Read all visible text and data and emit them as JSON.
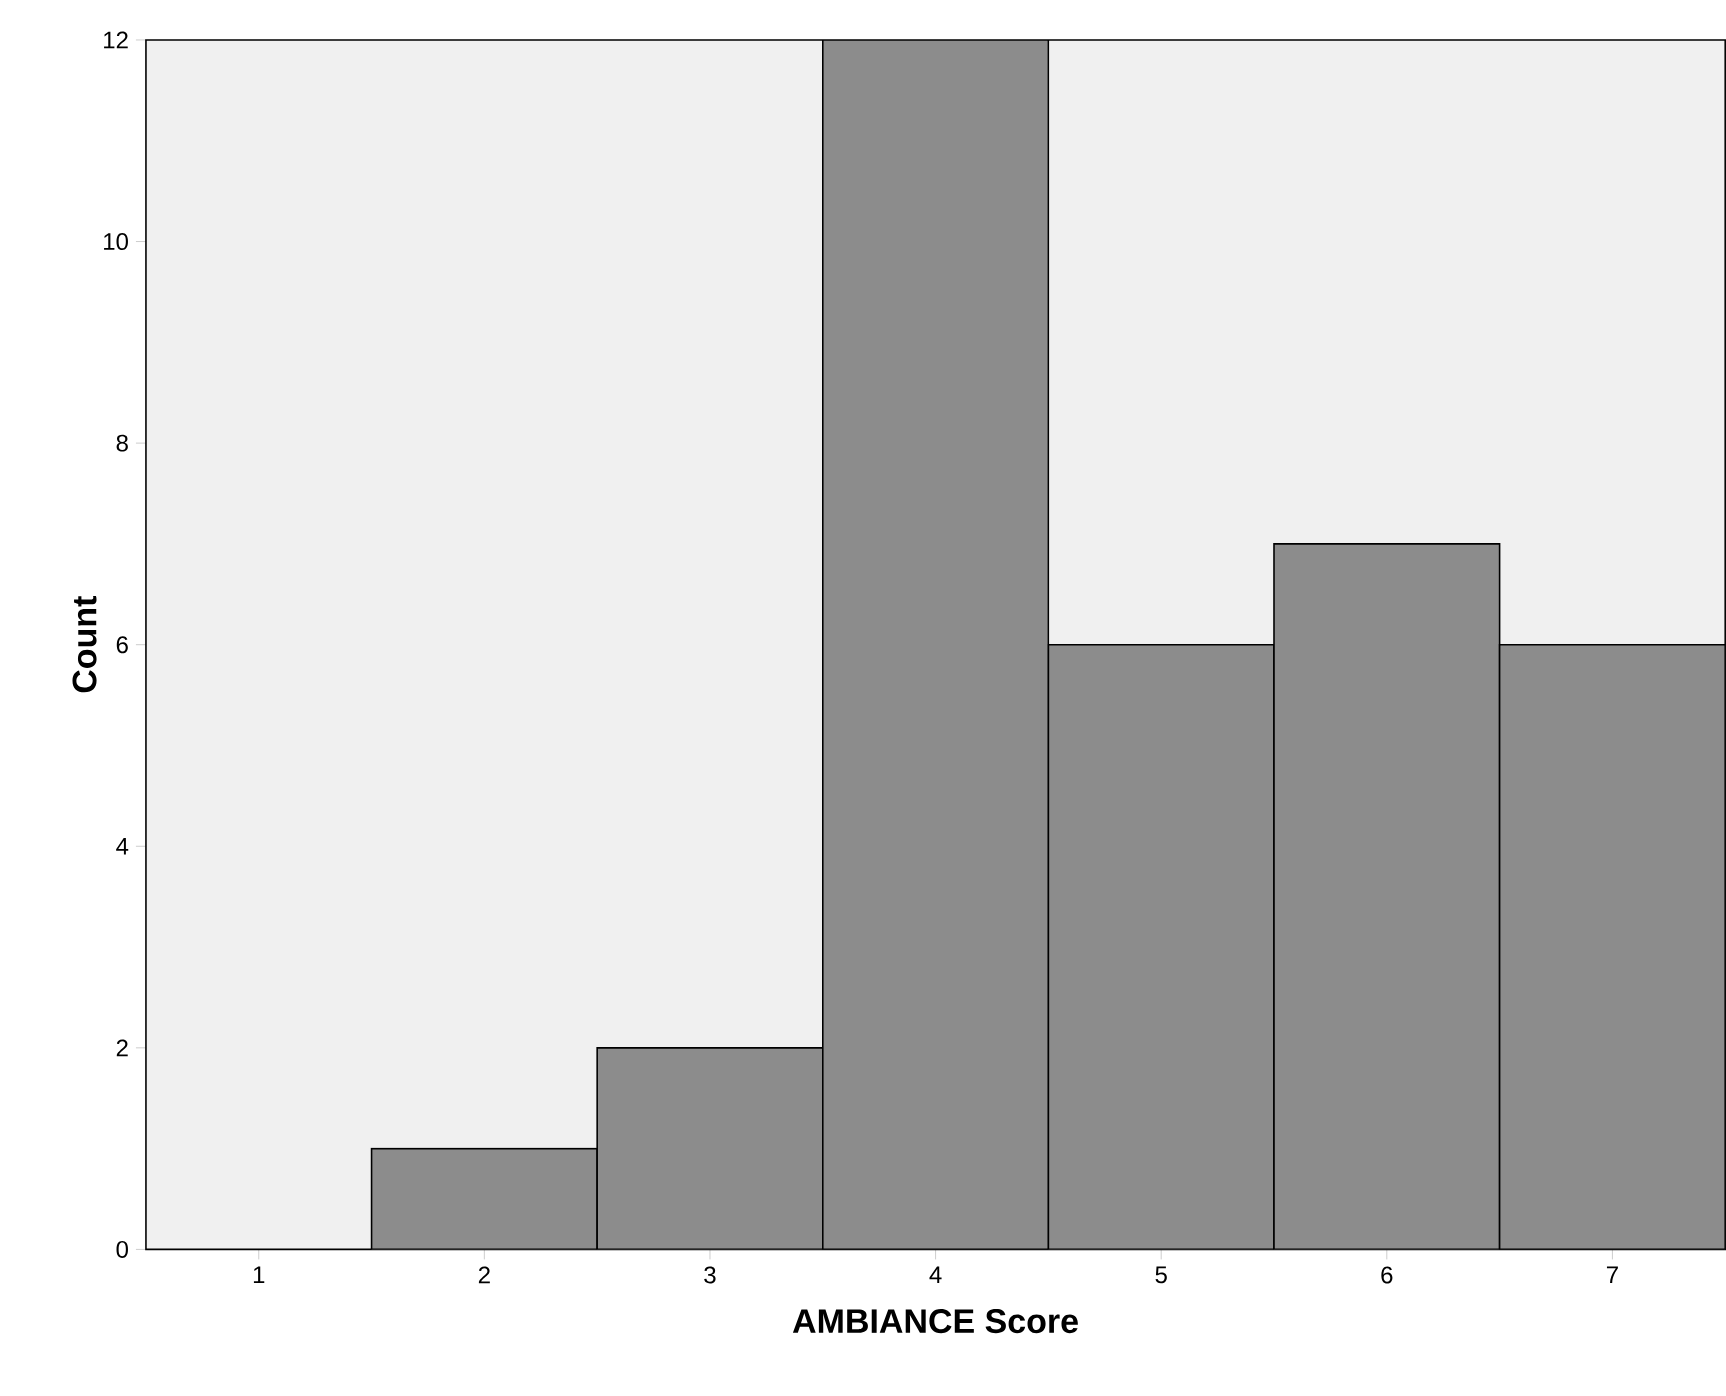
{
  "chart_data": {
    "type": "histogram",
    "xlabel": "AMBIANCE Score",
    "ylabel": "Count",
    "bins": [
      0.5,
      1.5,
      2.5,
      3.5,
      4.5,
      5.5,
      6.5,
      7.5
    ],
    "values": [
      0,
      1,
      2,
      12,
      6,
      7,
      6
    ],
    "color": "#8c8c8c",
    "xlim": [
      0.5,
      7.5
    ],
    "xticks": [
      1,
      2,
      3,
      4,
      5,
      6,
      7
    ],
    "ylim": [
      0,
      12
    ],
    "yticks": [
      0,
      2,
      4,
      6,
      8,
      10,
      12
    ]
  }
}
